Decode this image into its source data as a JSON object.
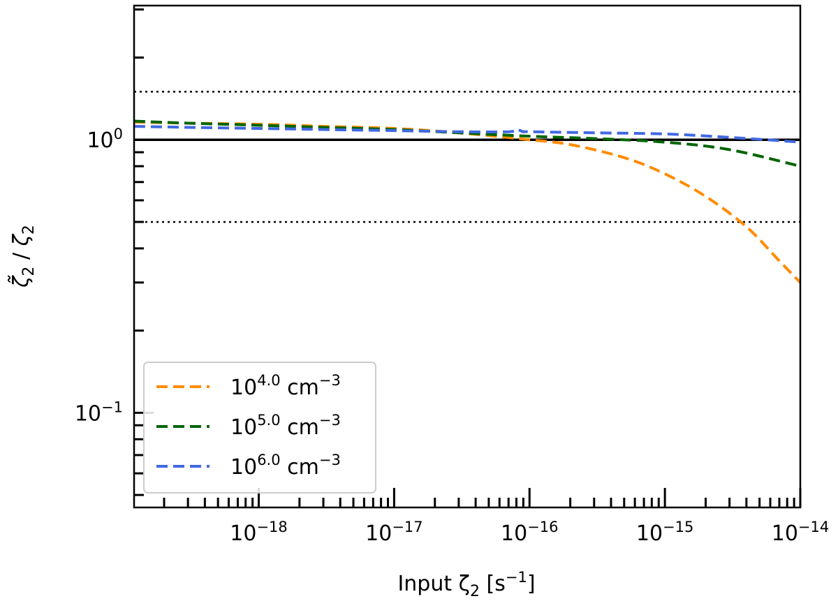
{
  "chart_data": {
    "type": "line",
    "title": "",
    "xlabel": "Input ζ₂ [s⁻¹]",
    "ylabel": "ζ̃₂ / ζ₂",
    "x_scale": "log",
    "y_scale": "log",
    "xlim": [
      1.2e-19,
      1e-14
    ],
    "ylim": [
      0.045,
      3.1
    ],
    "x_ticks": [
      {
        "value": 1e-18,
        "label": "10⁻¹⁸"
      },
      {
        "value": 1e-17,
        "label": "10⁻¹⁷"
      },
      {
        "value": 1e-16,
        "label": "10⁻¹⁶"
      },
      {
        "value": 1e-15,
        "label": "10⁻¹⁵"
      },
      {
        "value": 1e-14,
        "label": "10⁻¹⁴"
      }
    ],
    "y_ticks": [
      {
        "value": 1,
        "label": "10⁰"
      },
      {
        "value": 0.1,
        "label": "10⁻¹"
      }
    ],
    "reference_lines": [
      {
        "y": 1.0,
        "style": "solid",
        "color": "#000000"
      },
      {
        "y": 1.5,
        "style": "dotted",
        "color": "#000000"
      },
      {
        "y": 0.5,
        "style": "dotted",
        "color": "#000000"
      }
    ],
    "grid": false,
    "legend_position": "lower-left",
    "series": [
      {
        "name": "10^4.0 cm^-3",
        "name_base": "10",
        "name_exp": "4.0",
        "name_unit": "cm",
        "name_unit_exp": "−3",
        "color": "#ff8c00",
        "x": [
          1.2e-19,
          3e-19,
          1e-18,
          3e-18,
          1e-17,
          3e-17,
          1e-16,
          2e-16,
          5e-16,
          1e-15,
          2e-15,
          4e-15,
          7e-15,
          1e-14
        ],
        "y": [
          1.16,
          1.15,
          1.14,
          1.12,
          1.1,
          1.06,
          1.0,
          0.96,
          0.86,
          0.75,
          0.62,
          0.48,
          0.36,
          0.3
        ]
      },
      {
        "name": "10^5.0 cm^-3",
        "name_base": "10",
        "name_exp": "5.0",
        "name_unit": "cm",
        "name_unit_exp": "−3",
        "color": "#006400",
        "x": [
          1.2e-19,
          3e-19,
          1e-18,
          3e-18,
          1e-17,
          3e-17,
          1e-16,
          3e-16,
          1e-15,
          3e-15,
          1e-14
        ],
        "y": [
          1.17,
          1.15,
          1.13,
          1.11,
          1.09,
          1.06,
          1.03,
          1.01,
          0.98,
          0.92,
          0.8
        ]
      },
      {
        "name": "10^6.0 cm^-3",
        "name_base": "10",
        "name_exp": "6.0",
        "name_unit": "cm",
        "name_unit_exp": "−3",
        "color": "#4169e1",
        "x": [
          1.2e-19,
          3e-19,
          1e-18,
          3e-18,
          1e-17,
          3e-17,
          7e-17,
          8e-17,
          9e-17,
          1e-16,
          3e-16,
          1e-15,
          3e-15,
          1e-14
        ],
        "y": [
          1.12,
          1.11,
          1.1,
          1.09,
          1.08,
          1.07,
          1.07,
          1.09,
          1.07,
          1.07,
          1.06,
          1.05,
          1.02,
          0.98
        ]
      }
    ]
  }
}
